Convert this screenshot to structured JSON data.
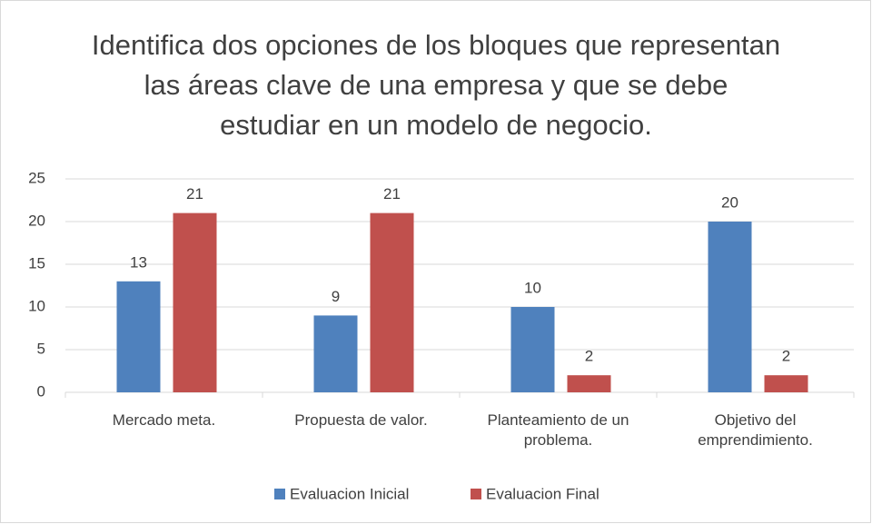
{
  "chart_data": {
    "type": "bar",
    "title": "Identifica dos opciones de los bloques que representan las áreas clave de una empresa y que se debe estudiar en un modelo de negocio.",
    "categories": [
      "Mercado meta.",
      "Propuesta de valor.",
      "Planteamiento de un problema.",
      "Objetivo del emprendimiento."
    ],
    "series": [
      {
        "name": "Evaluacion Inicial",
        "color": "#4f81bd",
        "values": [
          13,
          9,
          10,
          20
        ]
      },
      {
        "name": "Evaluacion Final",
        "color": "#c0504d",
        "values": [
          21,
          21,
          2,
          2
        ]
      }
    ],
    "ylim": [
      0,
      25
    ],
    "yticks": [
      0,
      5,
      10,
      15,
      20,
      25
    ],
    "grid": true,
    "legend": "bottom"
  }
}
